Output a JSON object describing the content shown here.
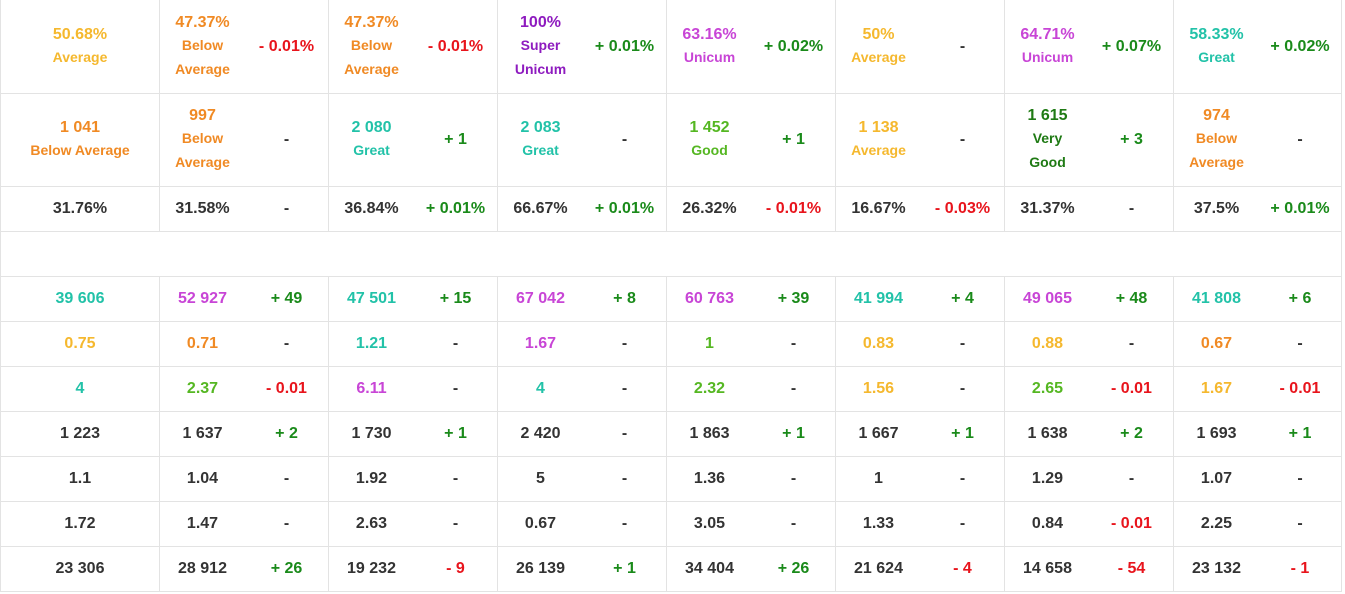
{
  "colors": {
    "average": "#f5b82e",
    "below_average": "#f08a24",
    "super_unicum": "#8e1bbf",
    "unicum": "#c845d6",
    "great": "#22c2a8",
    "good": "#55b722",
    "very_good": "#1f7a14",
    "neutral": "#333333",
    "positive": "#1a8a1a",
    "negative": "#e8141c"
  },
  "rows": [
    {
      "height": 94,
      "cells": [
        {
          "main": "50.68%",
          "rating": "Average",
          "color": "average",
          "delta": null
        },
        {
          "main": "47.37%",
          "rating": "Below\nAverage",
          "color": "below_average",
          "delta": "- 0.01%",
          "delta_color": "negative"
        },
        {
          "main": "47.37%",
          "rating": "Below\nAverage",
          "color": "below_average",
          "delta": "- 0.01%",
          "delta_color": "negative"
        },
        {
          "main": "100%",
          "rating": "Super\nUnicum",
          "color": "super_unicum",
          "delta": "+ 0.01%",
          "delta_color": "positive"
        },
        {
          "main": "63.16%",
          "rating": "Unicum",
          "color": "unicum",
          "delta": "+ 0.02%",
          "delta_color": "positive"
        },
        {
          "main": "50%",
          "rating": "Average",
          "color": "average",
          "delta": "-",
          "delta_color": "neutral"
        },
        {
          "main": "64.71%",
          "rating": "Unicum",
          "color": "unicum",
          "delta": "+ 0.07%",
          "delta_color": "positive"
        },
        {
          "main": "58.33%",
          "rating": "Great",
          "color": "great",
          "delta": "+ 0.02%",
          "delta_color": "positive"
        }
      ]
    },
    {
      "height": 93,
      "cells": [
        {
          "main": "1 041",
          "rating": "Below Average",
          "color": "below_average",
          "delta": null
        },
        {
          "main": "997",
          "rating": "Below\nAverage",
          "color": "below_average",
          "delta": "-",
          "delta_color": "neutral"
        },
        {
          "main": "2 080",
          "rating": "Great",
          "color": "great",
          "delta": "+ 1",
          "delta_color": "positive"
        },
        {
          "main": "2 083",
          "rating": "Great",
          "color": "great",
          "delta": "-",
          "delta_color": "neutral"
        },
        {
          "main": "1 452",
          "rating": "Good",
          "color": "good",
          "delta": "+ 1",
          "delta_color": "positive"
        },
        {
          "main": "1 138",
          "rating": "Average",
          "color": "average",
          "delta": "-",
          "delta_color": "neutral"
        },
        {
          "main": "1 615",
          "rating": "Very\nGood",
          "color": "very_good",
          "delta": "+ 3",
          "delta_color": "positive"
        },
        {
          "main": "974",
          "rating": "Below\nAverage",
          "color": "below_average",
          "delta": "-",
          "delta_color": "neutral"
        }
      ]
    },
    {
      "height": 45,
      "cells": [
        {
          "main": "31.76%",
          "color": "neutral",
          "delta": null
        },
        {
          "main": "31.58%",
          "color": "neutral",
          "delta": "-",
          "delta_color": "neutral"
        },
        {
          "main": "36.84%",
          "color": "neutral",
          "delta": "+ 0.01%",
          "delta_color": "positive"
        },
        {
          "main": "66.67%",
          "color": "neutral",
          "delta": "+ 0.01%",
          "delta_color": "positive"
        },
        {
          "main": "26.32%",
          "color": "neutral",
          "delta": "- 0.01%",
          "delta_color": "negative"
        },
        {
          "main": "16.67%",
          "color": "neutral",
          "delta": "- 0.03%",
          "delta_color": "negative"
        },
        {
          "main": "31.37%",
          "color": "neutral",
          "delta": "-",
          "delta_color": "neutral"
        },
        {
          "main": "37.5%",
          "color": "neutral",
          "delta": "+ 0.01%",
          "delta_color": "positive"
        }
      ]
    },
    {
      "spacer": true,
      "height": 45
    },
    {
      "height": 45,
      "cells": [
        {
          "main": "39 606",
          "color": "great",
          "delta": null
        },
        {
          "main": "52 927",
          "color": "unicum",
          "delta": "+ 49",
          "delta_color": "positive"
        },
        {
          "main": "47 501",
          "color": "great",
          "delta": "+ 15",
          "delta_color": "positive"
        },
        {
          "main": "67 042",
          "color": "unicum",
          "delta": "+ 8",
          "delta_color": "positive"
        },
        {
          "main": "60 763",
          "color": "unicum",
          "delta": "+ 39",
          "delta_color": "positive"
        },
        {
          "main": "41 994",
          "color": "great",
          "delta": "+ 4",
          "delta_color": "positive"
        },
        {
          "main": "49 065",
          "color": "unicum",
          "delta": "+ 48",
          "delta_color": "positive"
        },
        {
          "main": "41 808",
          "color": "great",
          "delta": "+ 6",
          "delta_color": "positive"
        }
      ]
    },
    {
      "height": 45,
      "cells": [
        {
          "main": "0.75",
          "color": "average",
          "delta": null
        },
        {
          "main": "0.71",
          "color": "below_average",
          "delta": "-",
          "delta_color": "neutral"
        },
        {
          "main": "1.21",
          "color": "great",
          "delta": "-",
          "delta_color": "neutral"
        },
        {
          "main": "1.67",
          "color": "unicum",
          "delta": "-",
          "delta_color": "neutral"
        },
        {
          "main": "1",
          "color": "good",
          "delta": "-",
          "delta_color": "neutral"
        },
        {
          "main": "0.83",
          "color": "average",
          "delta": "-",
          "delta_color": "neutral"
        },
        {
          "main": "0.88",
          "color": "average",
          "delta": "-",
          "delta_color": "neutral"
        },
        {
          "main": "0.67",
          "color": "below_average",
          "delta": "-",
          "delta_color": "neutral"
        }
      ]
    },
    {
      "height": 45,
      "cells": [
        {
          "main": "4",
          "color": "great",
          "delta": null
        },
        {
          "main": "2.37",
          "color": "good",
          "delta": "- 0.01",
          "delta_color": "negative"
        },
        {
          "main": "6.11",
          "color": "unicum",
          "delta": "-",
          "delta_color": "neutral"
        },
        {
          "main": "4",
          "color": "great",
          "delta": "-",
          "delta_color": "neutral"
        },
        {
          "main": "2.32",
          "color": "good",
          "delta": "-",
          "delta_color": "neutral"
        },
        {
          "main": "1.56",
          "color": "average",
          "delta": "-",
          "delta_color": "neutral"
        },
        {
          "main": "2.65",
          "color": "good",
          "delta": "- 0.01",
          "delta_color": "negative"
        },
        {
          "main": "1.67",
          "color": "average",
          "delta": "- 0.01",
          "delta_color": "negative"
        }
      ]
    },
    {
      "height": 45,
      "cells": [
        {
          "main": "1 223",
          "color": "neutral",
          "delta": null
        },
        {
          "main": "1 637",
          "color": "neutral",
          "delta": "+ 2",
          "delta_color": "positive"
        },
        {
          "main": "1 730",
          "color": "neutral",
          "delta": "+ 1",
          "delta_color": "positive"
        },
        {
          "main": "2 420",
          "color": "neutral",
          "delta": "-",
          "delta_color": "neutral"
        },
        {
          "main": "1 863",
          "color": "neutral",
          "delta": "+ 1",
          "delta_color": "positive"
        },
        {
          "main": "1 667",
          "color": "neutral",
          "delta": "+ 1",
          "delta_color": "positive"
        },
        {
          "main": "1 638",
          "color": "neutral",
          "delta": "+ 2",
          "delta_color": "positive"
        },
        {
          "main": "1 693",
          "color": "neutral",
          "delta": "+ 1",
          "delta_color": "positive"
        }
      ]
    },
    {
      "height": 45,
      "cells": [
        {
          "main": "1.1",
          "color": "neutral",
          "delta": null
        },
        {
          "main": "1.04",
          "color": "neutral",
          "delta": "-",
          "delta_color": "neutral"
        },
        {
          "main": "1.92",
          "color": "neutral",
          "delta": "-",
          "delta_color": "neutral"
        },
        {
          "main": "5",
          "color": "neutral",
          "delta": "-",
          "delta_color": "neutral"
        },
        {
          "main": "1.36",
          "color": "neutral",
          "delta": "-",
          "delta_color": "neutral"
        },
        {
          "main": "1",
          "color": "neutral",
          "delta": "-",
          "delta_color": "neutral"
        },
        {
          "main": "1.29",
          "color": "neutral",
          "delta": "-",
          "delta_color": "neutral"
        },
        {
          "main": "1.07",
          "color": "neutral",
          "delta": "-",
          "delta_color": "neutral"
        }
      ]
    },
    {
      "height": 45,
      "cells": [
        {
          "main": "1.72",
          "color": "neutral",
          "delta": null
        },
        {
          "main": "1.47",
          "color": "neutral",
          "delta": "-",
          "delta_color": "neutral"
        },
        {
          "main": "2.63",
          "color": "neutral",
          "delta": "-",
          "delta_color": "neutral"
        },
        {
          "main": "0.67",
          "color": "neutral",
          "delta": "-",
          "delta_color": "neutral"
        },
        {
          "main": "3.05",
          "color": "neutral",
          "delta": "-",
          "delta_color": "neutral"
        },
        {
          "main": "1.33",
          "color": "neutral",
          "delta": "-",
          "delta_color": "neutral"
        },
        {
          "main": "0.84",
          "color": "neutral",
          "delta": "- 0.01",
          "delta_color": "negative"
        },
        {
          "main": "2.25",
          "color": "neutral",
          "delta": "-",
          "delta_color": "neutral"
        }
      ]
    },
    {
      "height": 45,
      "cells": [
        {
          "main": "23 306",
          "color": "neutral",
          "delta": null
        },
        {
          "main": "28 912",
          "color": "neutral",
          "delta": "+ 26",
          "delta_color": "positive"
        },
        {
          "main": "19 232",
          "color": "neutral",
          "delta": "- 9",
          "delta_color": "negative"
        },
        {
          "main": "26 139",
          "color": "neutral",
          "delta": "+ 1",
          "delta_color": "positive"
        },
        {
          "main": "34 404",
          "color": "neutral",
          "delta": "+ 26",
          "delta_color": "positive"
        },
        {
          "main": "21 624",
          "color": "neutral",
          "delta": "- 4",
          "delta_color": "negative"
        },
        {
          "main": "14 658",
          "color": "neutral",
          "delta": "- 54",
          "delta_color": "negative"
        },
        {
          "main": "23 132",
          "color": "neutral",
          "delta": "- 1",
          "delta_color": "negative"
        }
      ]
    }
  ]
}
